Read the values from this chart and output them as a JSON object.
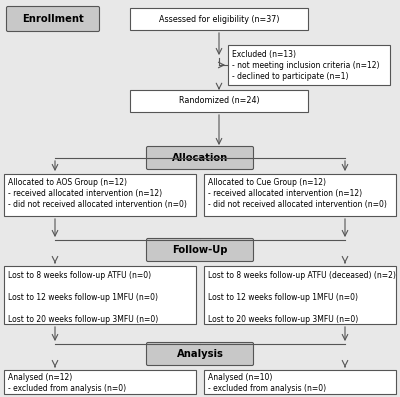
{
  "fig_bg": "#e8e8e8",
  "box_bg": "#ffffff",
  "header_bg": "#c8c8c8",
  "border_color": "#555555",
  "arrow_color": "#555555",
  "text_color": "#000000",
  "font_size": 5.8,
  "header_font_size": 7.2,
  "enrollment_label": "Enrollment",
  "assessed_text": "Assessed for eligibility (n=37)",
  "excluded_text": "Excluded (n=13)\n- not meeting inclusion criteria (n=12)\n- declined to participate (n=1)",
  "randomized_text": "Randomized (n=24)",
  "allocation_text": "Allocation",
  "aos_text": "Allocated to AOS Group (n=12)\n- received allocated intervention (n=12)\n- did not received allocated intervention (n=0)",
  "cue_text": "Allocated to Cue Group (n=12)\n- received allocated intervention (n=12)\n- did not received allocated intervention (n=0)",
  "followup_text": "Follow-Up",
  "aos_followup_text": "Lost to 8 weeks follow-up ATFU (n=0)\n\nLost to 12 weeks follow-up 1MFU (n=0)\n\nLost to 20 weeks follow-up 3MFU (n=0)",
  "cue_followup_text": "Lost to 8 weeks follow-up ATFU (deceased) (n=2)\n\nLost to 12 weeks follow-up 1MFU (n=0)\n\nLost to 20 weeks follow-up 3MFU (n=0)",
  "analysis_text": "Analysis",
  "aos_analysis_text": "Analysed (n=12)\n- excluded from analysis (n=0)",
  "cue_analysis_text": "Analysed (n=10)\n- excluded from analysis (n=0)"
}
